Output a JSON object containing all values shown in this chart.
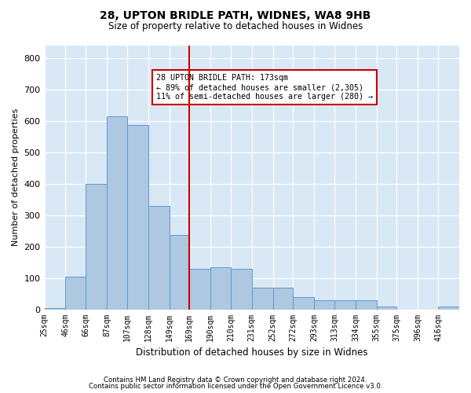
{
  "title1": "28, UPTON BRIDLE PATH, WIDNES, WA8 9HB",
  "title2": "Size of property relative to detached houses in Widnes",
  "xlabel": "Distribution of detached houses by size in Widnes",
  "ylabel": "Number of detached properties",
  "footer1": "Contains HM Land Registry data © Crown copyright and database right 2024.",
  "footer2": "Contains public sector information licensed under the Open Government Licence v3.0.",
  "annotation_title": "28 UPTON BRIDLE PATH: 173sqm",
  "annotation_line1": "← 89% of detached houses are smaller (2,305)",
  "annotation_line2": "11% of semi-detached houses are larger (280) →",
  "property_size": 173,
  "bar_edges": [
    25,
    46,
    66,
    87,
    107,
    128,
    149,
    169,
    190,
    210,
    231,
    252,
    272,
    293,
    313,
    334,
    355,
    375,
    396,
    416,
    437
  ],
  "bar_heights": [
    5,
    103,
    400,
    613,
    586,
    328,
    237,
    130,
    133,
    130,
    70,
    70,
    40,
    28,
    28,
    28,
    10,
    0,
    0,
    10
  ],
  "bar_color": "#adc8e0",
  "bar_edge_color": "#5b9bd5",
  "vline_color": "#cc0000",
  "vline_x": 169,
  "annotation_box_color": "#cc0000",
  "background_color": "#d9e8f5",
  "ylim": [
    0,
    840
  ],
  "yticks": [
    0,
    100,
    200,
    300,
    400,
    500,
    600,
    700,
    800
  ]
}
